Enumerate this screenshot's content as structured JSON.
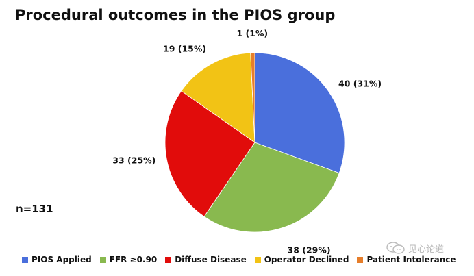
{
  "title": "Procedural outcomes in the PIOS group",
  "n_label": "n=131",
  "watermark_text": "见心论道",
  "chart_data": {
    "type": "pie",
    "title": "Procedural outcomes in the PIOS group",
    "categories": [
      "PIOS Applied",
      "FFR ≥0.90",
      "Diffuse Disease",
      "Operator Declined",
      "Patient Intolerance"
    ],
    "values": [
      40,
      38,
      33,
      19,
      1
    ],
    "slice_labels": [
      "40 (31%)",
      "38 (29%)",
      "33 (25%)",
      "19 (15%)",
      "1 (1%)"
    ],
    "colors": [
      "#4a6fdc",
      "#89b94f",
      "#e10c0b",
      "#f2c315",
      "#e67e2b"
    ],
    "start": "12 o'clock",
    "direction": "clockwise",
    "legend_position": "bottom"
  }
}
